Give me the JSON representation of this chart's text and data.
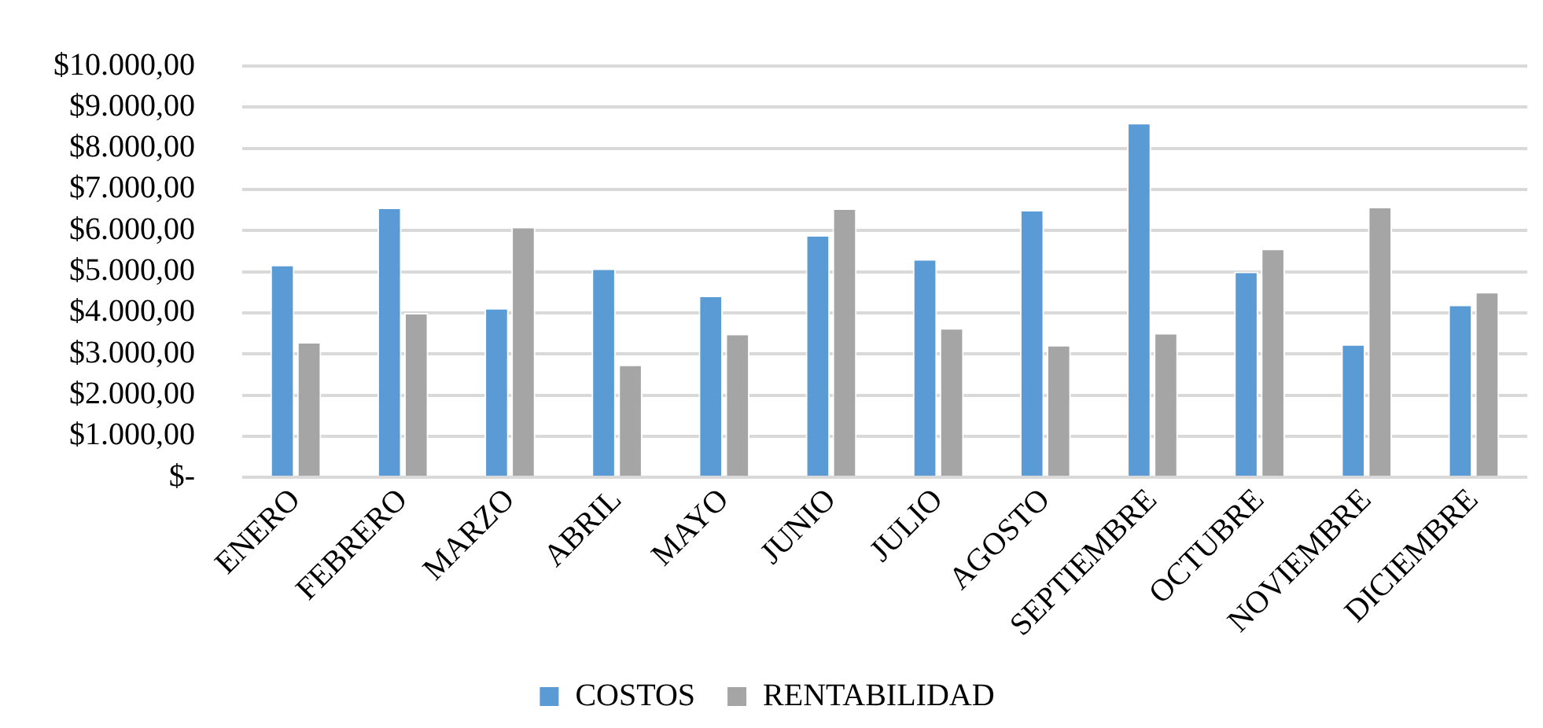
{
  "chart_data": {
    "type": "bar",
    "categories": [
      "ENERO",
      "FEBRERO",
      "MARZO",
      "ABRIL",
      "MAYO",
      "JUNIO",
      "JULIO",
      "AGOSTO",
      "SEPTIEMBRE",
      "OCTUBRE",
      "NOVIEMBRE",
      "DICIEMBRE"
    ],
    "series": [
      {
        "name": "COSTOS",
        "color": "#5b9bd5",
        "values": [
          5170,
          6560,
          4120,
          5080,
          4420,
          5890,
          5310,
          6500,
          8620,
          5000,
          3240,
          4200
        ]
      },
      {
        "name": "RENTABILIDAD",
        "color": "#a5a5a5",
        "values": [
          3290,
          4000,
          6090,
          2740,
          3490,
          6540,
          3630,
          3220,
          3510,
          5560,
          6580,
          4510
        ]
      }
    ],
    "ylim": [
      0,
      10000
    ],
    "yticks": [
      {
        "value": 0,
        "label": "$-"
      },
      {
        "value": 1000,
        "label": "$1.000,00"
      },
      {
        "value": 2000,
        "label": "$2.000,00"
      },
      {
        "value": 3000,
        "label": "$3.000,00"
      },
      {
        "value": 4000,
        "label": "$4.000,00"
      },
      {
        "value": 5000,
        "label": "$5.000,00"
      },
      {
        "value": 6000,
        "label": "$6.000,00"
      },
      {
        "value": 7000,
        "label": "$7.000,00"
      },
      {
        "value": 8000,
        "label": "$8.000,00"
      },
      {
        "value": 9000,
        "label": "$9.000,00"
      },
      {
        "value": 10000,
        "label": "$10.000,00"
      }
    ],
    "grid": "y",
    "legend": "bottom"
  }
}
